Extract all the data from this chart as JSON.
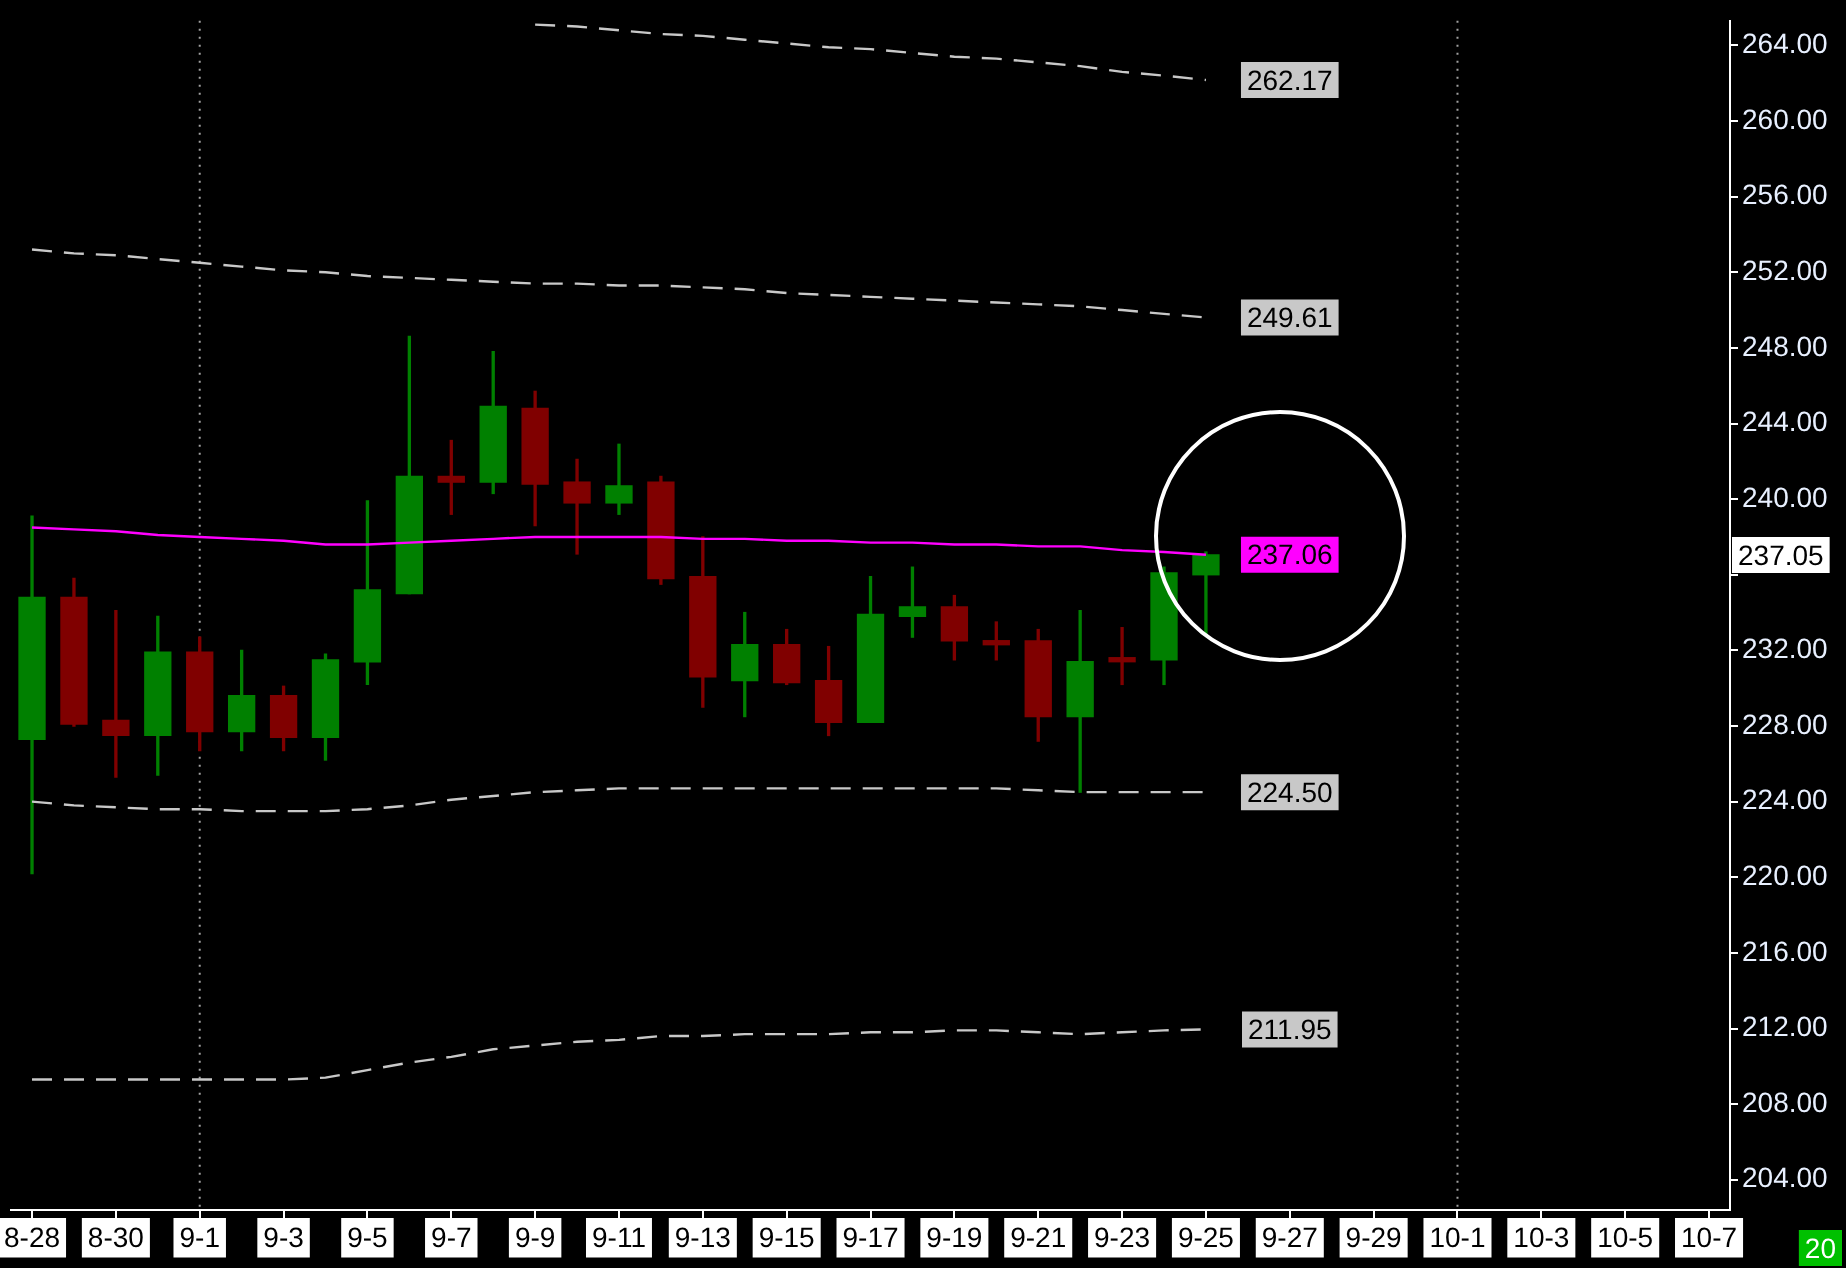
{
  "chart_data": {
    "type": "candlestick",
    "categories": [
      "8-28",
      null,
      "8-30",
      null,
      "9-1",
      null,
      "9-3",
      null,
      "9-5",
      null,
      "9-7",
      null,
      "9-9",
      null,
      "9-11",
      null,
      "9-13",
      null,
      "9-15",
      null,
      "9-17",
      null,
      "9-19",
      null,
      "9-21",
      null,
      "9-23",
      null,
      "9-25",
      null,
      "9-27",
      null,
      "9-29",
      null,
      "10-1",
      null,
      "10-3",
      null,
      "10-5",
      null,
      "10-7"
    ],
    "series": [
      {
        "type": "line",
        "color": "#c8c8c8",
        "line_style": "dashed",
        "value_labels": [
          null,
          null,
          null,
          null,
          null,
          null,
          null,
          null,
          null,
          null,
          null,
          null,
          null,
          null,
          null,
          null,
          null,
          null,
          null,
          null,
          null,
          null,
          null,
          null,
          null,
          null,
          null,
          null,
          "262.17",
          null,
          null,
          null,
          null,
          null,
          null,
          null,
          null,
          null,
          null,
          null,
          null
        ],
        "values": [
          null,
          null,
          null,
          null,
          null,
          null,
          null,
          null,
          null,
          null,
          null,
          null,
          265.1,
          265.0,
          264.8,
          264.6,
          264.5,
          264.3,
          264.1,
          263.9,
          263.8,
          263.6,
          263.4,
          263.3,
          263.1,
          262.9,
          262.6,
          262.4,
          262.17,
          null,
          null,
          null,
          null,
          null,
          null,
          null,
          null,
          null,
          null,
          null,
          null
        ]
      },
      {
        "type": "line",
        "color": "#c8c8c8",
        "line_style": "dashed",
        "value_labels": [
          null,
          null,
          null,
          null,
          null,
          null,
          null,
          null,
          null,
          null,
          null,
          null,
          null,
          null,
          null,
          null,
          null,
          null,
          null,
          null,
          null,
          null,
          null,
          null,
          null,
          null,
          null,
          null,
          "249.61",
          null,
          null,
          null,
          null,
          null,
          null,
          null,
          null,
          null,
          null,
          null,
          null
        ],
        "values": [
          253.2,
          253.0,
          252.9,
          252.7,
          252.5,
          252.3,
          252.1,
          252.0,
          251.8,
          251.7,
          251.6,
          251.5,
          251.4,
          251.4,
          251.3,
          251.3,
          251.2,
          251.1,
          250.9,
          250.8,
          250.7,
          250.6,
          250.5,
          250.4,
          250.3,
          250.2,
          250.0,
          249.8,
          249.61,
          null,
          null,
          null,
          null,
          null,
          null,
          null,
          null,
          null,
          null,
          null,
          null
        ]
      },
      {
        "type": "line",
        "color": "#ff00ff",
        "line_style": "solid",
        "value_labels": [
          null,
          null,
          null,
          null,
          null,
          null,
          null,
          null,
          null,
          null,
          null,
          null,
          null,
          null,
          null,
          null,
          null,
          null,
          null,
          null,
          null,
          null,
          null,
          null,
          null,
          null,
          null,
          null,
          "237.06",
          null,
          null,
          null,
          null,
          null,
          null,
          null,
          null,
          null,
          null,
          null,
          null
        ],
        "values": [
          238.5,
          238.4,
          238.3,
          238.1,
          238.0,
          237.9,
          237.8,
          237.6,
          237.6,
          237.7,
          237.8,
          237.9,
          238.0,
          238.0,
          238.0,
          238.0,
          237.9,
          237.9,
          237.8,
          237.8,
          237.7,
          237.7,
          237.6,
          237.6,
          237.5,
          237.5,
          237.3,
          237.2,
          237.06,
          null,
          null,
          null,
          null,
          null,
          null,
          null,
          null,
          null,
          null,
          null,
          null
        ]
      },
      {
        "type": "line",
        "color": "#c8c8c8",
        "line_style": "dashed",
        "value_labels": [
          null,
          null,
          null,
          null,
          null,
          null,
          null,
          null,
          null,
          null,
          null,
          null,
          null,
          null,
          null,
          null,
          null,
          null,
          null,
          null,
          null,
          null,
          null,
          null,
          null,
          null,
          null,
          null,
          "224.50",
          null,
          null,
          null,
          null,
          null,
          null,
          null,
          null,
          null,
          null,
          null,
          null
        ],
        "values": [
          224.0,
          223.8,
          223.7,
          223.6,
          223.6,
          223.5,
          223.5,
          223.5,
          223.6,
          223.8,
          224.1,
          224.3,
          224.5,
          224.6,
          224.7,
          224.7,
          224.7,
          224.7,
          224.7,
          224.7,
          224.7,
          224.7,
          224.7,
          224.7,
          224.6,
          224.5,
          224.5,
          224.5,
          224.5,
          null,
          null,
          null,
          null,
          null,
          null,
          null,
          null,
          null,
          null,
          null,
          null
        ]
      },
      {
        "type": "line",
        "color": "#c8c8c8",
        "line_style": "dashed",
        "value_labels": [
          null,
          null,
          null,
          null,
          null,
          null,
          null,
          null,
          null,
          null,
          null,
          null,
          null,
          null,
          null,
          null,
          null,
          null,
          null,
          null,
          null,
          null,
          null,
          null,
          null,
          null,
          null,
          null,
          "211.95",
          null,
          null,
          null,
          null,
          null,
          null,
          null,
          null,
          null,
          null,
          null,
          null
        ],
        "values": [
          209.3,
          209.3,
          209.3,
          209.3,
          209.3,
          209.3,
          209.3,
          209.4,
          209.8,
          210.2,
          210.5,
          210.9,
          211.1,
          211.3,
          211.4,
          211.6,
          211.6,
          211.7,
          211.7,
          211.7,
          211.8,
          211.8,
          211.9,
          211.9,
          211.8,
          211.7,
          211.8,
          211.9,
          211.95,
          null,
          null,
          null,
          null,
          null,
          null,
          null,
          null,
          null,
          null,
          null,
          null
        ]
      },
      {
        "value_labels": [
          null,
          null,
          null,
          null,
          null,
          null,
          null,
          null,
          null,
          null,
          null,
          null,
          null,
          null,
          null,
          null,
          null,
          null,
          null,
          null,
          null,
          null,
          null,
          null,
          null,
          null,
          null,
          null,
          "237.05",
          null,
          null,
          null,
          null,
          null,
          null,
          null,
          null,
          null,
          null,
          null,
          null
        ],
        "ohlc": [
          [
            227.3,
            239.1,
            220.2,
            234.8
          ],
          [
            234.8,
            235.8,
            228.0,
            228.1
          ],
          [
            228.3,
            234.1,
            225.3,
            227.5
          ],
          [
            227.5,
            233.8,
            225.4,
            231.9
          ],
          [
            231.9,
            232.7,
            226.7,
            227.7
          ],
          [
            227.7,
            232.0,
            226.7,
            229.6
          ],
          [
            229.6,
            230.1,
            226.7,
            227.4
          ],
          [
            227.4,
            231.8,
            226.2,
            231.5
          ],
          [
            231.4,
            239.9,
            230.2,
            235.2
          ],
          [
            235.0,
            248.6,
            235.0,
            241.2
          ],
          [
            241.2,
            243.1,
            239.2,
            240.9
          ],
          [
            240.9,
            247.8,
            240.3,
            244.9
          ],
          [
            244.8,
            245.7,
            238.6,
            240.8
          ],
          [
            240.9,
            242.1,
            237.1,
            239.8
          ],
          [
            239.8,
            242.9,
            239.2,
            240.7
          ],
          [
            240.9,
            241.2,
            235.5,
            235.8
          ],
          [
            235.9,
            238.0,
            229.0,
            230.6
          ],
          [
            230.4,
            234.0,
            228.5,
            232.3
          ],
          [
            232.3,
            233.1,
            230.2,
            230.3
          ],
          [
            230.4,
            232.2,
            227.5,
            228.2
          ],
          [
            228.2,
            235.9,
            228.2,
            233.9
          ],
          [
            233.8,
            236.4,
            232.7,
            234.3
          ],
          [
            234.3,
            234.9,
            231.5,
            232.5
          ],
          [
            232.5,
            233.5,
            231.5,
            232.3
          ],
          [
            232.5,
            233.1,
            227.2,
            228.5
          ],
          [
            228.5,
            234.1,
            224.5,
            231.4
          ],
          [
            231.6,
            233.2,
            230.2,
            231.4
          ],
          [
            231.5,
            236.4,
            230.2,
            236.1
          ],
          [
            236.0,
            237.2,
            232.8,
            237.05
          ],
          null,
          null,
          null,
          null,
          null,
          null,
          null,
          null,
          null,
          null,
          null,
          null
        ],
        "colors": [
          "#008000",
          "#800000",
          "#800000",
          "#008000",
          "#800000",
          "#008000",
          "#800000",
          "#008000",
          "#008000",
          "#008000",
          "#800000",
          "#008000",
          "#800000",
          "#800000",
          "#008000",
          "#800000",
          "#800000",
          "#008000",
          "#800000",
          "#800000",
          "#008000",
          "#008000",
          "#800000",
          "#800000",
          "#800000",
          "#008000",
          "#800000",
          "#008000",
          "#008000",
          null,
          null,
          null,
          null,
          null,
          null,
          null,
          null,
          null,
          null,
          null,
          null
        ]
      }
    ],
    "ylim": [
      202.4,
      265.3
    ],
    "yticks": [
      {
        "value": 204,
        "label": "204.00"
      },
      {
        "value": 208,
        "label": "208.00"
      },
      {
        "value": 212,
        "label": "212.00"
      },
      {
        "value": 216,
        "label": "216.00"
      },
      {
        "value": 220,
        "label": "220.00"
      },
      {
        "value": 224,
        "label": "224.00"
      },
      {
        "value": 228,
        "label": "228.00"
      },
      {
        "value": 232,
        "label": "232.00"
      },
      {
        "value": 236,
        "label": null
      },
      {
        "value": 240,
        "label": "240.00"
      },
      {
        "value": 244,
        "label": "244.00"
      },
      {
        "value": 248,
        "label": "248.00"
      },
      {
        "value": 252,
        "label": "252.00"
      },
      {
        "value": 256,
        "label": "256.00"
      },
      {
        "value": 260,
        "label": "260.00"
      },
      {
        "value": 264,
        "label": "264.00"
      }
    ],
    "ref_lines": [
      {
        "axis": "x",
        "value": "9-1",
        "color": "#a0a0a0",
        "line_style": "dotted"
      },
      {
        "axis": "x",
        "value": "10-1",
        "color": "#a0a0a0",
        "line_style": "dotted"
      }
    ],
    "annotations": [
      "20"
    ],
    "legend": false
  }
}
